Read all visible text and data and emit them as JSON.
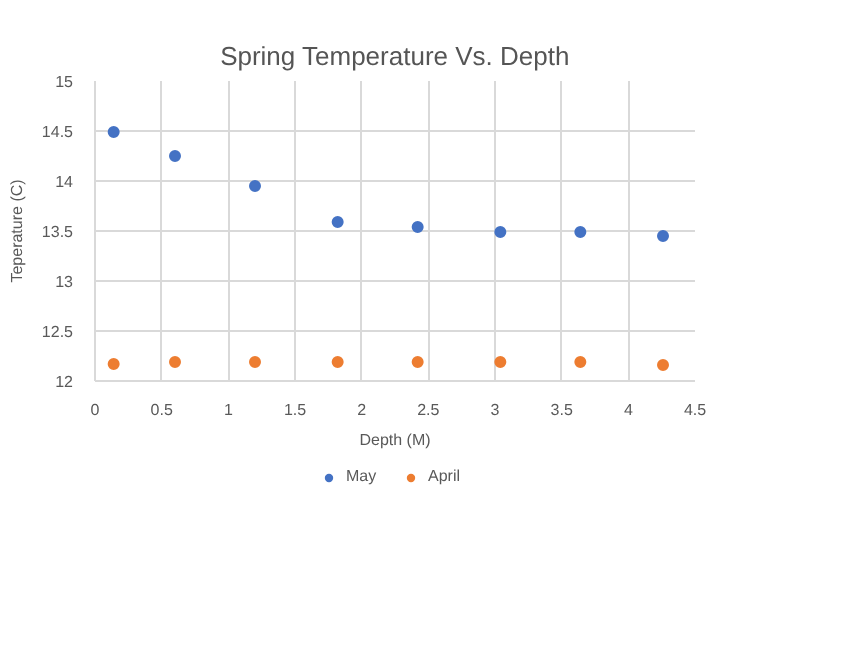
{
  "chart_data": {
    "type": "scatter",
    "title": "Spring Temperature Vs. Depth",
    "xlabel": "Depth (M)",
    "ylabel": "Teperature (C)",
    "x": [
      0.14,
      0.6,
      1.2,
      1.82,
      2.42,
      3.04,
      3.64,
      4.26
    ],
    "series": [
      {
        "name": "May",
        "color": "#4472c4",
        "values": [
          14.49,
          14.25,
          13.95,
          13.59,
          13.54,
          13.49,
          13.49,
          13.45
        ]
      },
      {
        "name": "April",
        "color": "#ed7d31",
        "values": [
          12.17,
          12.19,
          12.19,
          12.19,
          12.19,
          12.19,
          12.19,
          12.16
        ]
      }
    ],
    "xlim": [
      0,
      4.5
    ],
    "xticks": [
      0,
      0.5,
      1,
      1.5,
      2,
      2.5,
      3,
      3.5,
      4,
      4.5
    ],
    "ylim": [
      12,
      15
    ],
    "yticks": [
      12,
      12.5,
      13,
      13.5,
      14,
      14.5,
      15
    ],
    "grid": true,
    "legend": "bottom",
    "marker": "circle"
  }
}
